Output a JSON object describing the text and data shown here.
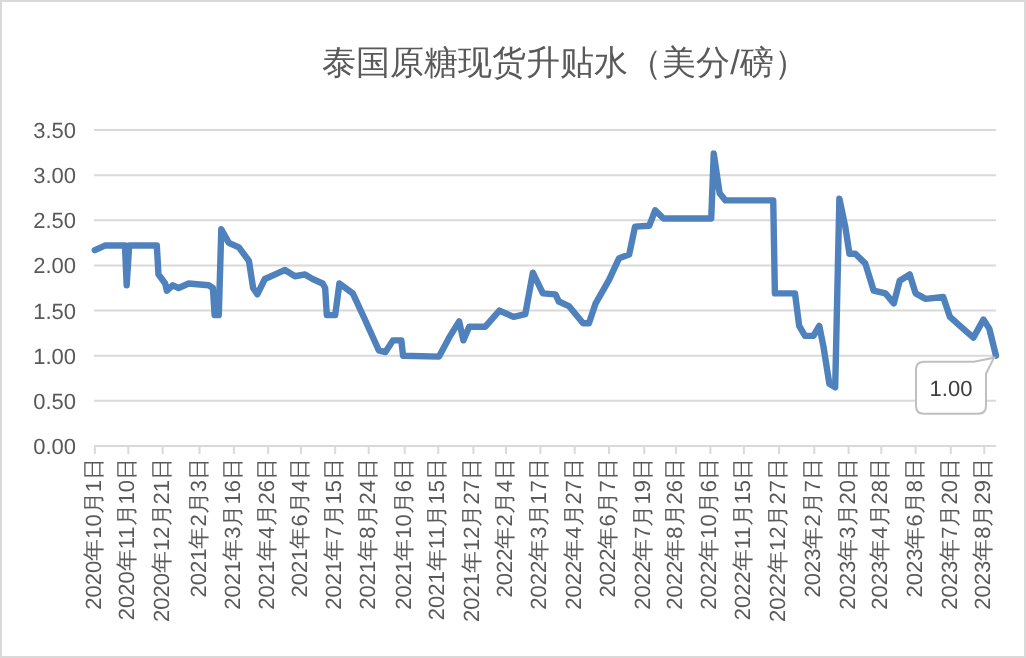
{
  "chart_data": {
    "type": "line",
    "title": "泰国原糖现货升贴水（美分/磅）",
    "x": [
      "2020-10-01",
      "2020-10-13",
      "2020-11-06",
      "2020-11-08",
      "2020-11-11",
      "2020-12-14",
      "2020-12-16",
      "2020-12-24",
      "2020-12-26",
      "2021-01-02",
      "2021-01-09",
      "2021-01-21",
      "2021-02-14",
      "2021-02-19",
      "2021-02-21",
      "2021-02-26",
      "2021-03-01",
      "2021-03-10",
      "2021-03-22",
      "2021-04-03",
      "2021-04-08",
      "2021-04-13",
      "2021-04-22",
      "2021-05-09",
      "2021-05-16",
      "2021-05-28",
      "2021-06-09",
      "2021-06-18",
      "2021-06-30",
      "2021-07-03",
      "2021-07-05",
      "2021-07-15",
      "2021-07-20",
      "2021-08-05",
      "2021-08-20",
      "2021-09-05",
      "2021-09-13",
      "2021-09-22",
      "2021-10-02",
      "2021-10-04",
      "2021-11-16",
      "2021-11-28",
      "2021-12-10",
      "2021-12-15",
      "2021-12-22",
      "2022-01-10",
      "2022-01-27",
      "2022-02-13",
      "2022-02-27",
      "2022-03-08",
      "2022-03-20",
      "2022-04-04",
      "2022-04-08",
      "2022-04-20",
      "2022-05-07",
      "2022-05-14",
      "2022-05-22",
      "2022-06-07",
      "2022-06-19",
      "2022-07-01",
      "2022-07-08",
      "2022-07-25",
      "2022-08-01",
      "2022-08-11",
      "2022-10-07",
      "2022-10-10",
      "2022-10-17",
      "2022-10-24",
      "2022-12-20",
      "2022-12-22",
      "2023-01-15",
      "2023-01-20",
      "2023-01-27",
      "2023-02-06",
      "2023-02-13",
      "2023-02-18",
      "2023-02-25",
      "2023-03-04",
      "2023-03-09",
      "2023-03-16",
      "2023-03-21",
      "2023-03-28",
      "2023-04-09",
      "2023-04-19",
      "2023-05-03",
      "2023-05-13",
      "2023-05-20",
      "2023-06-01",
      "2023-06-08",
      "2023-06-20",
      "2023-07-11",
      "2023-07-19",
      "2023-07-31",
      "2023-08-16",
      "2023-08-28",
      "2023-09-04",
      "2023-09-12"
    ],
    "series": [
      {
        "color": "#4f81bd",
        "values": [
          2.17,
          2.22,
          2.22,
          1.78,
          2.22,
          2.22,
          1.9,
          1.8,
          1.72,
          1.78,
          1.75,
          1.8,
          1.78,
          1.75,
          1.45,
          1.45,
          2.4,
          2.25,
          2.2,
          2.05,
          1.75,
          1.68,
          1.85,
          1.92,
          1.95,
          1.88,
          1.9,
          1.85,
          1.8,
          1.75,
          1.45,
          1.45,
          1.8,
          1.69,
          1.39,
          1.06,
          1.04,
          1.17,
          1.17,
          1.0,
          0.99,
          1.2,
          1.38,
          1.17,
          1.32,
          1.32,
          1.5,
          1.43,
          1.46,
          1.92,
          1.69,
          1.68,
          1.6,
          1.55,
          1.36,
          1.36,
          1.58,
          1.84,
          2.08,
          2.12,
          2.43,
          2.44,
          2.61,
          2.52,
          2.52,
          3.24,
          2.8,
          2.72,
          2.72,
          1.69,
          1.69,
          1.33,
          1.22,
          1.22,
          1.33,
          1.1,
          0.69,
          0.65,
          2.74,
          2.43,
          2.13,
          2.13,
          2.02,
          1.72,
          1.69,
          1.58,
          1.83,
          1.9,
          1.69,
          1.63,
          1.65,
          1.43,
          1.33,
          1.2,
          1.4,
          1.3,
          1.0
        ]
      }
    ],
    "xlim": [
      "2020-09-30",
      "2023-09-12"
    ],
    "xticks": [
      {
        "value": "2020-10-01",
        "label": "2020年10月1日"
      },
      {
        "value": "2020-11-10",
        "label": "2020年11月10日"
      },
      {
        "value": "2020-12-21",
        "label": "2020年12月21日"
      },
      {
        "value": "2021-02-03",
        "label": "2021年2月3日"
      },
      {
        "value": "2021-03-16",
        "label": "2021年3月16日"
      },
      {
        "value": "2021-04-26",
        "label": "2021年4月26日"
      },
      {
        "value": "2021-06-04",
        "label": "2021年6月4日"
      },
      {
        "value": "2021-07-15",
        "label": "2021年7月15日"
      },
      {
        "value": "2021-08-24",
        "label": "2021年8月24日"
      },
      {
        "value": "2021-10-06",
        "label": "2021年10月6日"
      },
      {
        "value": "2021-11-15",
        "label": "2021年11月15日"
      },
      {
        "value": "2021-12-27",
        "label": "2021年12月27日"
      },
      {
        "value": "2022-02-04",
        "label": "2022年2月4日"
      },
      {
        "value": "2022-03-17",
        "label": "2022年3月17日"
      },
      {
        "value": "2022-04-27",
        "label": "2022年4月27日"
      },
      {
        "value": "2022-06-07",
        "label": "2022年6月7日"
      },
      {
        "value": "2022-07-19",
        "label": "2022年7月19日"
      },
      {
        "value": "2022-08-26",
        "label": "2022年8月26日"
      },
      {
        "value": "2022-10-06",
        "label": "2022年10月6日"
      },
      {
        "value": "2022-11-15",
        "label": "2022年11月15日"
      },
      {
        "value": "2022-12-27",
        "label": "2022年12月27日"
      },
      {
        "value": "2023-02-07",
        "label": "2023年2月7日"
      },
      {
        "value": "2023-03-20",
        "label": "2023年3月20日"
      },
      {
        "value": "2023-04-28",
        "label": "2023年4月28日"
      },
      {
        "value": "2023-06-08",
        "label": "2023年6月8日"
      },
      {
        "value": "2023-07-20",
        "label": "2023年7月20日"
      },
      {
        "value": "2023-08-29",
        "label": "2023年8月29日"
      }
    ],
    "ylim": [
      0,
      3.5
    ],
    "yticks": [
      {
        "value": 0,
        "label": "0.00"
      },
      {
        "value": 0.5,
        "label": "0.50"
      },
      {
        "value": 1,
        "label": "1.00"
      },
      {
        "value": 1.5,
        "label": "1.50"
      },
      {
        "value": 2,
        "label": "2.00"
      },
      {
        "value": 2.5,
        "label": "2.50"
      },
      {
        "value": 3,
        "label": "3.00"
      },
      {
        "value": 3.5,
        "label": "3.50"
      }
    ],
    "grid": "y",
    "line_style": "solid",
    "annotations": [
      {
        "text": "1.00",
        "x": "2023-09-12",
        "y": 1.0
      }
    ]
  }
}
